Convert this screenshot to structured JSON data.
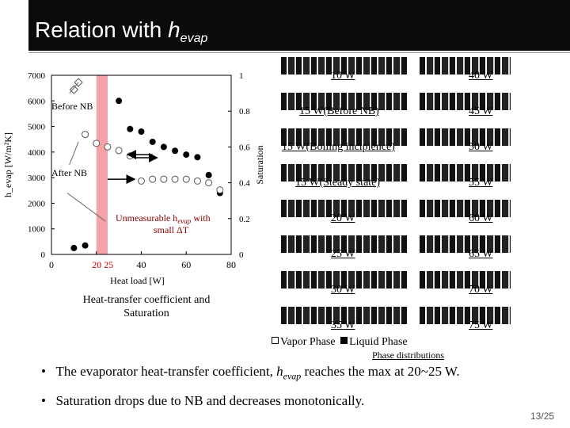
{
  "slide": {
    "title_prefix": "Relation with ",
    "title_sym": "h",
    "title_sub": "evap",
    "page_current": "13",
    "page_sep": "/",
    "page_total": "25"
  },
  "chart_data": {
    "type": "scatter",
    "xlabel": "Heat load [W]",
    "ylabel_left": "h_evap [W/m²K]",
    "ylabel_right": "Saturation",
    "xlim": [
      0,
      80
    ],
    "ylim_left": [
      0,
      7000
    ],
    "ylim_right": [
      0,
      1
    ],
    "x_ticks": [
      "0",
      "20",
      "40",
      "60",
      "80"
    ],
    "y_ticks_left": [
      "0",
      "1000",
      "2000",
      "3000",
      "4000",
      "5000",
      "6000",
      "7000"
    ],
    "y_ticks_right": [
      "0",
      "0.2",
      "0.4",
      "0.6",
      "0.8",
      "1"
    ],
    "highlight_band_x": [
      20,
      25
    ],
    "highlight_label": "20 25",
    "series": [
      {
        "name": "h_evap",
        "axis": "left",
        "marker": "filled-circle",
        "x": [
          10,
          15,
          30,
          35,
          40,
          45,
          50,
          55,
          60,
          65,
          70,
          75
        ],
        "y": [
          250,
          350,
          6000,
          4900,
          4800,
          4400,
          4200,
          4050,
          3900,
          3800,
          3100,
          2400
        ]
      },
      {
        "name": "Saturation",
        "axis": "right",
        "marker": "open-circle",
        "x": [
          10,
          12,
          15,
          20,
          25,
          30,
          35,
          40,
          45,
          50,
          55,
          60,
          65,
          70,
          75
        ],
        "y": [
          0.92,
          0.96,
          0.67,
          0.62,
          0.6,
          0.58,
          0.55,
          0.41,
          0.42,
          0.42,
          0.42,
          0.42,
          0.41,
          0.4,
          0.36
        ]
      }
    ],
    "annotations": {
      "before_nb": "Before NB",
      "after_nb": "After NB",
      "unmeasurable_a": "Unmeasurable h",
      "unmeasurable_b": "evap",
      "unmeasurable_c": " with",
      "small_dt": "small ΔT"
    }
  },
  "caption": {
    "line1": "Heat-transfer coefficient and",
    "line2": "Saturation"
  },
  "phase_labels_left": [
    "10 W",
    "15 W(Before NB)",
    "15 W(Boiling incipience)",
    "15 W(Steady state)",
    "20 W",
    "25 W",
    "30 W",
    "35 W"
  ],
  "phase_labels_right": [
    "40 W",
    "45 W",
    "50 W",
    "55 W",
    "60 W",
    "65 W",
    "70 W",
    "75 W"
  ],
  "legend": {
    "vapor": "Vapor Phase",
    "liquid": "Liquid Phase"
  },
  "phase_caption": "Phase distributions",
  "bullets": {
    "b1_pre": "The evaporator heat-transfer coefficient, ",
    "b1_sym": "h",
    "b1_sub": "evap",
    "b1_post": " reaches the max at 20~25 W.",
    "b2": "Saturation drops due to NB and decreases monotonically."
  }
}
